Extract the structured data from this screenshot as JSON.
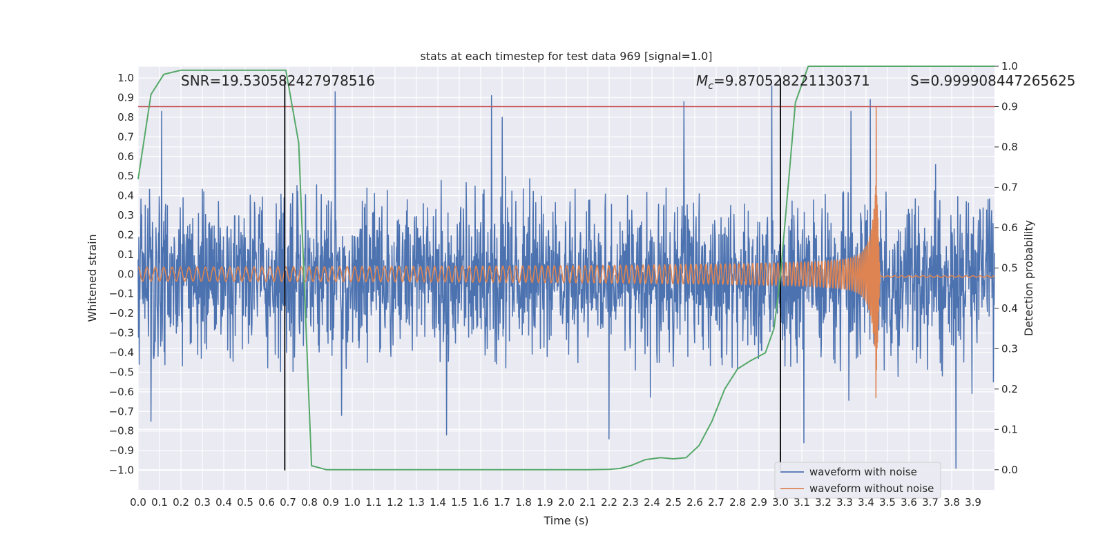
{
  "chart_data": {
    "type": "line",
    "title": "stats at each timestep for test data 969 [signal=1.0]",
    "xlabel": "Time (s)",
    "ylabel": "Whitened strain",
    "y2label": "Detection probability",
    "xlim": [
      0.0,
      4.0
    ],
    "ylim": [
      -1.1,
      1.06
    ],
    "y2lim": [
      -0.05,
      1.0
    ],
    "xticks": [
      "0.0",
      "0.1",
      "0.2",
      "0.3",
      "0.4",
      "0.5",
      "0.6",
      "0.7",
      "0.8",
      "0.9",
      "1.0",
      "1.1",
      "1.2",
      "1.3",
      "1.4",
      "1.5",
      "1.6",
      "1.7",
      "1.8",
      "1.9",
      "2.0",
      "2.1",
      "2.2",
      "2.3",
      "2.4",
      "2.5",
      "2.6",
      "2.7",
      "2.8",
      "2.9",
      "3.0",
      "3.1",
      "3.2",
      "3.3",
      "3.4",
      "3.5",
      "3.6",
      "3.7",
      "3.8",
      "3.9"
    ],
    "yticks": [
      "1.0",
      "0.9",
      "0.8",
      "0.7",
      "0.6",
      "0.5",
      "0.4",
      "0.3",
      "0.2",
      "0.1",
      "0.0",
      "-0.1",
      "-0.2",
      "-0.3",
      "-0.4",
      "-0.5",
      "-0.6",
      "-0.7",
      "-0.8",
      "-0.9",
      "-1.0"
    ],
    "y2ticks": [
      "1.0",
      "0.9",
      "0.8",
      "0.7",
      "0.6",
      "0.5",
      "0.4",
      "0.3",
      "0.2",
      "0.1",
      "0.0"
    ],
    "annotations": {
      "snr": "SNR=19.530582427978516",
      "mc_symbol": "M",
      "mc_sub": "c",
      "mc_value": "=9.870528221130371",
      "s": "S=0.999908447265625"
    },
    "legend": {
      "position": "lower-right",
      "entries": [
        {
          "label": "waveform with noise",
          "color": "#4c72b0"
        },
        {
          "label": "waveform without noise",
          "color": "#dd8452"
        }
      ]
    },
    "threshold_y": 0.77,
    "vlines_x": [
      0.685,
      3.0
    ],
    "detection_probability": {
      "color": "#55a868",
      "x": [
        0.0,
        0.06,
        0.12,
        0.2,
        0.3,
        0.4,
        0.5,
        0.6,
        0.69,
        0.75,
        0.81,
        0.88,
        1.0,
        1.2,
        1.5,
        1.8,
        2.1,
        2.2,
        2.25,
        2.3,
        2.37,
        2.44,
        2.5,
        2.56,
        2.62,
        2.68,
        2.74,
        2.8,
        2.86,
        2.93,
        2.97,
        3.0,
        3.07,
        3.13,
        3.2,
        3.5,
        4.0
      ],
      "y": [
        0.72,
        0.93,
        0.98,
        0.99,
        0.99,
        0.99,
        0.99,
        0.99,
        0.99,
        0.81,
        0.01,
        0.0,
        0.0,
        0.0,
        0.0,
        0.0,
        0.0,
        0.001,
        0.003,
        0.01,
        0.025,
        0.03,
        0.027,
        0.03,
        0.06,
        0.12,
        0.2,
        0.25,
        0.27,
        0.29,
        0.35,
        0.48,
        0.91,
        1.0,
        1.0,
        1.0,
        1.0
      ]
    },
    "noisy_waveform": {
      "color": "#4c72b0",
      "typical_range": [
        -0.5,
        0.45
      ],
      "peak_highs": [
        {
          "x": 0.11,
          "y": 0.83
        },
        {
          "x": 0.92,
          "y": 0.93
        },
        {
          "x": 1.65,
          "y": 0.91
        },
        {
          "x": 1.7,
          "y": 0.8
        },
        {
          "x": 2.55,
          "y": 0.88
        },
        {
          "x": 2.96,
          "y": 0.96
        },
        {
          "x": 3.33,
          "y": 0.83
        },
        {
          "x": 3.42,
          "y": 0.89
        }
      ],
      "peak_lows": [
        {
          "x": 0.06,
          "y": -0.75
        },
        {
          "x": 0.95,
          "y": -0.72
        },
        {
          "x": 1.44,
          "y": -0.82
        },
        {
          "x": 2.2,
          "y": -0.84
        },
        {
          "x": 3.11,
          "y": -0.86
        },
        {
          "x": 3.82,
          "y": -0.99
        }
      ]
    },
    "clean_waveform": {
      "color": "#dd8452",
      "merger_time": 3.445,
      "t_coalescence": 3.46,
      "start_amplitude": 0.035,
      "peak_y": 0.85,
      "min_y": -0.63
    }
  }
}
